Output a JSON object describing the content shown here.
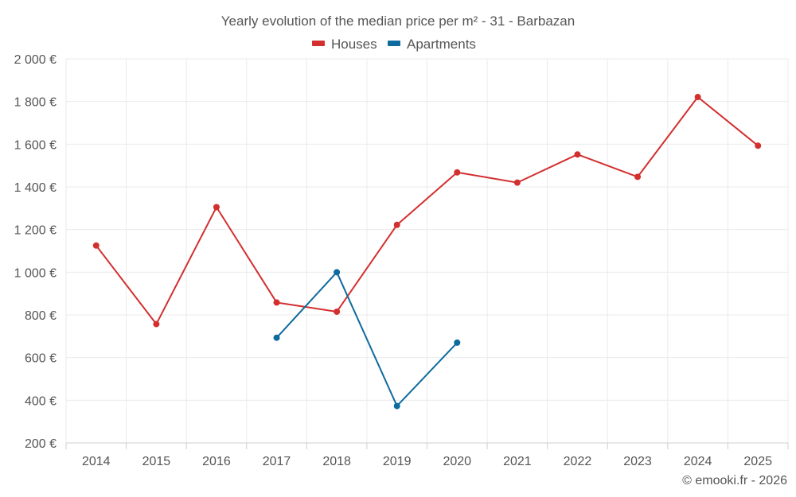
{
  "chart_data": {
    "type": "line",
    "title": "Yearly evolution of the median price per m² - 31 - Barbazan",
    "categories": [
      "2014",
      "2015",
      "2016",
      "2017",
      "2018",
      "2019",
      "2020",
      "2021",
      "2022",
      "2023",
      "2024",
      "2025"
    ],
    "ylim": [
      200,
      2000
    ],
    "yticks": [
      200,
      400,
      600,
      800,
      1000,
      1200,
      1400,
      1600,
      1800,
      2000
    ],
    "ytick_labels": [
      "200 €",
      "400 €",
      "600 €",
      "800 €",
      "1 000 €",
      "1 200 €",
      "1 400 €",
      "1 600 €",
      "1 800 €",
      "2 000 €"
    ],
    "grid": true,
    "legend_position": "top-center",
    "series": [
      {
        "name": "Houses",
        "color": "#d32f2f",
        "values": [
          1125,
          757,
          1305,
          858,
          815,
          1222,
          1468,
          1420,
          1552,
          1447,
          1821,
          1593
        ]
      },
      {
        "name": "Apartments",
        "color": "#0d6b9d",
        "values": [
          null,
          null,
          null,
          693,
          1000,
          373,
          670,
          null,
          null,
          null,
          null,
          null
        ]
      }
    ],
    "credit": "© emooki.fr - 2026"
  }
}
